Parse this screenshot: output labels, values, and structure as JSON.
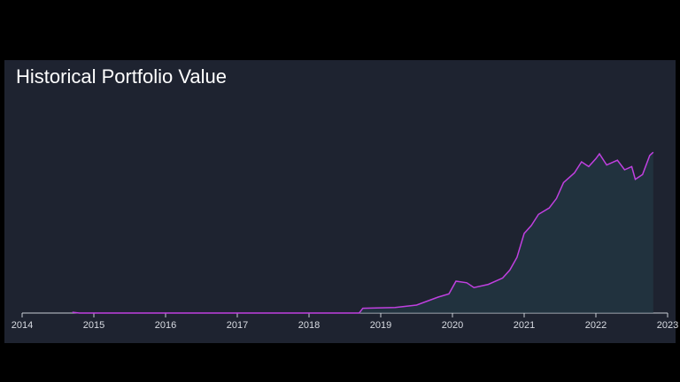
{
  "chart_data": {
    "type": "line",
    "title": "Historical Portfolio Value",
    "x": [
      2014.7,
      2014.8,
      2018.7,
      2018.75,
      2019.2,
      2019.5,
      2019.8,
      2019.95,
      2020.05,
      2020.2,
      2020.3,
      2020.5,
      2020.7,
      2020.8,
      2020.9,
      2021.0,
      2021.1,
      2021.2,
      2021.35,
      2021.45,
      2021.55,
      2021.7,
      2021.8,
      2021.9,
      2022.0,
      2022.05,
      2022.15,
      2022.3,
      2022.4,
      2022.5,
      2022.55,
      2022.65,
      2022.75,
      2022.8
    ],
    "series": [
      {
        "color": "#c040e0",
        "values": [
          0.5,
          0,
          0,
          3,
          3.5,
          5,
          10,
          12,
          20,
          19,
          16,
          18,
          22,
          27,
          35,
          50,
          55,
          62,
          66,
          72,
          82,
          88,
          95,
          92,
          97,
          100,
          93,
          96,
          90,
          92,
          84,
          87,
          99,
          101
        ]
      }
    ],
    "xlim": [
      2014,
      2023
    ],
    "xticks": [
      2014,
      2015,
      2016,
      2017,
      2018,
      2019,
      2020,
      2021,
      2022,
      2023
    ],
    "ylim": [
      0,
      105
    ]
  }
}
